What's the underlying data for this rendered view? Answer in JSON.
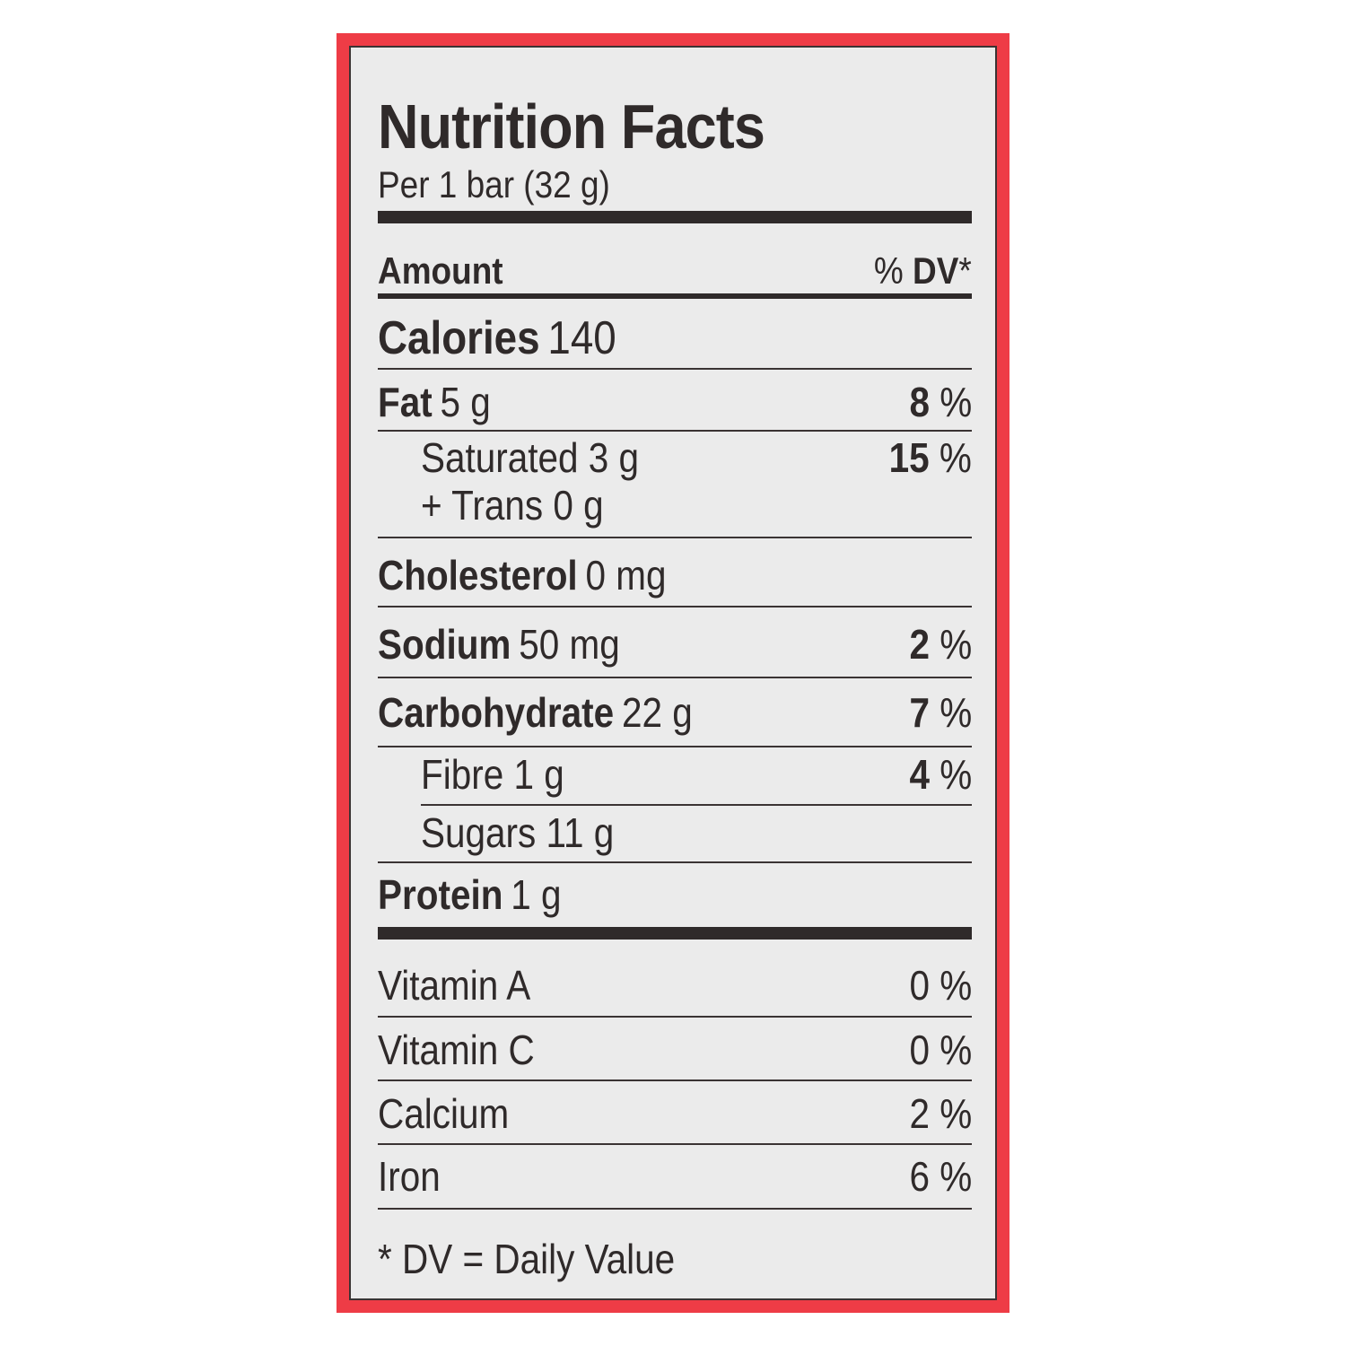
{
  "title": "Nutrition Facts",
  "serving": "Per 1 bar (32 g)",
  "header": {
    "amount": "Amount",
    "dv_pct": "%",
    "dv_label": "DV",
    "dv_star": "*"
  },
  "calories": {
    "label": "Calories",
    "value": "140"
  },
  "nutrients": {
    "fat": {
      "label": "Fat",
      "amount": "5 g",
      "dv_value": "8",
      "dv_unit": "%"
    },
    "saturated": {
      "label": "Saturated 3 g",
      "trans": "+ Trans 0 g",
      "dv_value": "15",
      "dv_unit": "%"
    },
    "cholesterol": {
      "label": "Cholesterol",
      "amount": "0 mg"
    },
    "sodium": {
      "label": "Sodium",
      "amount": "50 mg",
      "dv_value": "2",
      "dv_unit": "%"
    },
    "carbohydrate": {
      "label": "Carbohydrate",
      "amount": "22 g",
      "dv_value": "7",
      "dv_unit": "%"
    },
    "fibre": {
      "label": "Fibre 1 g",
      "dv_value": "4",
      "dv_unit": "%"
    },
    "sugars": {
      "label": "Sugars 11 g"
    },
    "protein": {
      "label": "Protein",
      "amount": "1 g"
    }
  },
  "vitamins": [
    {
      "label": "Vitamin A",
      "dv": "0 %"
    },
    {
      "label": "Vitamin C",
      "dv": "0 %"
    },
    {
      "label": "Calcium",
      "dv": "2 %"
    },
    {
      "label": "Iron",
      "dv": "6 %"
    }
  ],
  "footnote": "* DV = Daily Value",
  "colors": {
    "border": "#ee3c46",
    "panel": "#ebebeb",
    "ink": "#2f2a2a"
  }
}
